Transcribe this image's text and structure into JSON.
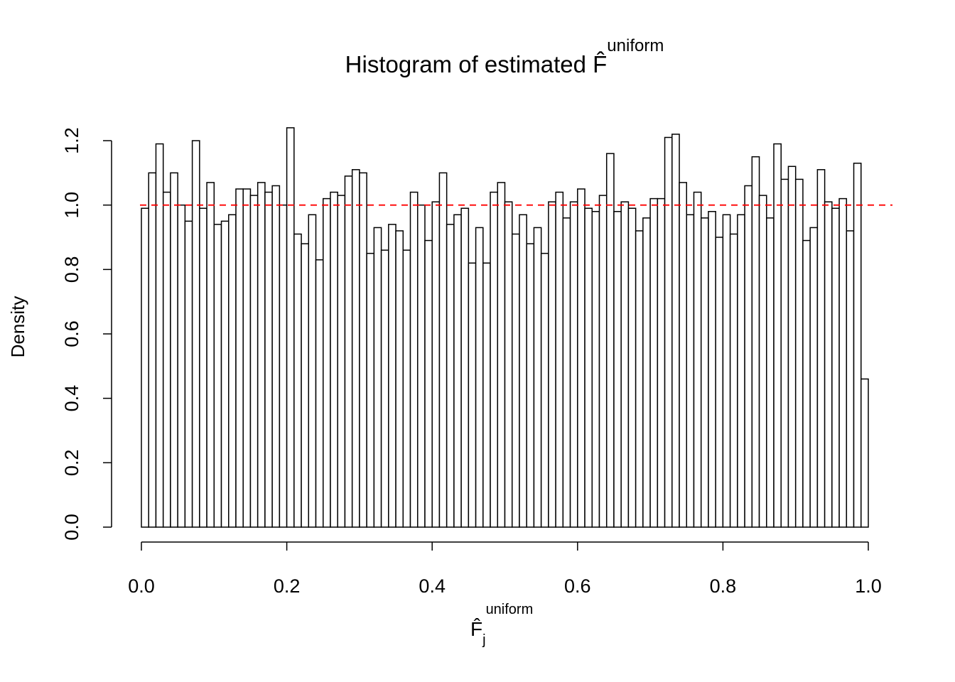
{
  "chart_data": {
    "type": "histogram",
    "title": "Histogram of estimated F̂",
    "title_superscript": "uniform",
    "xlabel": "F̂",
    "xlabel_subscript": "j",
    "xlabel_superscript": "uniform",
    "ylabel": "Density",
    "bins": [
      0,
      0.01,
      0.02,
      0.03,
      0.04,
      0.05,
      0.06,
      0.07,
      0.08,
      0.09,
      0.1,
      0.11,
      0.12,
      0.13,
      0.14,
      0.15,
      0.16,
      0.17,
      0.18,
      0.19,
      0.2,
      0.21,
      0.22,
      0.23,
      0.24,
      0.25,
      0.26,
      0.27,
      0.28,
      0.29,
      0.3,
      0.31,
      0.32,
      0.33,
      0.34,
      0.35,
      0.36,
      0.37,
      0.38,
      0.39,
      0.4,
      0.41,
      0.42,
      0.43,
      0.44,
      0.45,
      0.46,
      0.47,
      0.48,
      0.49,
      0.5,
      0.51,
      0.52,
      0.53,
      0.54,
      0.55,
      0.56,
      0.57,
      0.58,
      0.59,
      0.6,
      0.61,
      0.62,
      0.63,
      0.64,
      0.65,
      0.66,
      0.67,
      0.68,
      0.69,
      0.7,
      0.71,
      0.72,
      0.73,
      0.74,
      0.75,
      0.76,
      0.77,
      0.78,
      0.79,
      0.8,
      0.81,
      0.82,
      0.83,
      0.84,
      0.85,
      0.86,
      0.87,
      0.88,
      0.89,
      0.9,
      0.91,
      0.92,
      0.93,
      0.94,
      0.95,
      0.96,
      0.97,
      0.98,
      0.99,
      1
    ],
    "values": [
      0.99,
      1.1,
      1.19,
      1.04,
      1.1,
      1.0,
      0.95,
      1.2,
      0.99,
      1.07,
      0.94,
      0.95,
      0.97,
      1.05,
      1.05,
      1.03,
      1.07,
      1.04,
      1.06,
      1.0,
      1.24,
      0.91,
      0.88,
      0.97,
      0.83,
      1.02,
      1.04,
      1.03,
      1.09,
      1.11,
      1.1,
      0.85,
      0.93,
      0.86,
      0.94,
      0.92,
      0.86,
      1.04,
      1.0,
      0.89,
      1.01,
      1.1,
      0.94,
      0.97,
      0.99,
      0.82,
      0.93,
      0.82,
      1.04,
      1.07,
      1.01,
      0.91,
      0.97,
      0.88,
      0.93,
      0.85,
      1.01,
      1.04,
      0.96,
      1.01,
      1.05,
      0.99,
      0.98,
      1.03,
      1.16,
      0.98,
      1.01,
      0.99,
      0.92,
      0.96,
      1.02,
      1.02,
      1.21,
      1.22,
      1.07,
      0.97,
      1.04,
      0.96,
      0.98,
      0.9,
      0.97,
      0.91,
      0.97,
      1.06,
      1.15,
      1.03,
      0.96,
      1.19,
      1.08,
      1.12,
      1.08,
      0.89,
      0.93,
      1.11,
      1.01,
      0.99,
      1.02,
      0.92,
      1.13,
      0.46
    ],
    "color": "#ffffff",
    "edgecolor": "#000000",
    "hline": {
      "value": 1,
      "color": "#ff0000"
    },
    "xlim": [
      0,
      1
    ],
    "ylim": [
      0,
      1.2
    ],
    "xticks": [
      {
        "value": 0,
        "label": "0.0"
      },
      {
        "value": 0.2,
        "label": "0.2"
      },
      {
        "value": 0.4,
        "label": "0.4"
      },
      {
        "value": 0.6,
        "label": "0.6"
      },
      {
        "value": 0.8,
        "label": "0.8"
      },
      {
        "value": 1,
        "label": "1.0"
      }
    ],
    "yticks": [
      {
        "value": 0,
        "label": "0.0"
      },
      {
        "value": 0.2,
        "label": "0.2"
      },
      {
        "value": 0.4,
        "label": "0.4"
      },
      {
        "value": 0.6,
        "label": "0.6"
      },
      {
        "value": 0.8,
        "label": "0.8"
      },
      {
        "value": 1,
        "label": "1.0"
      },
      {
        "value": 1.2,
        "label": "1.2"
      }
    ]
  }
}
